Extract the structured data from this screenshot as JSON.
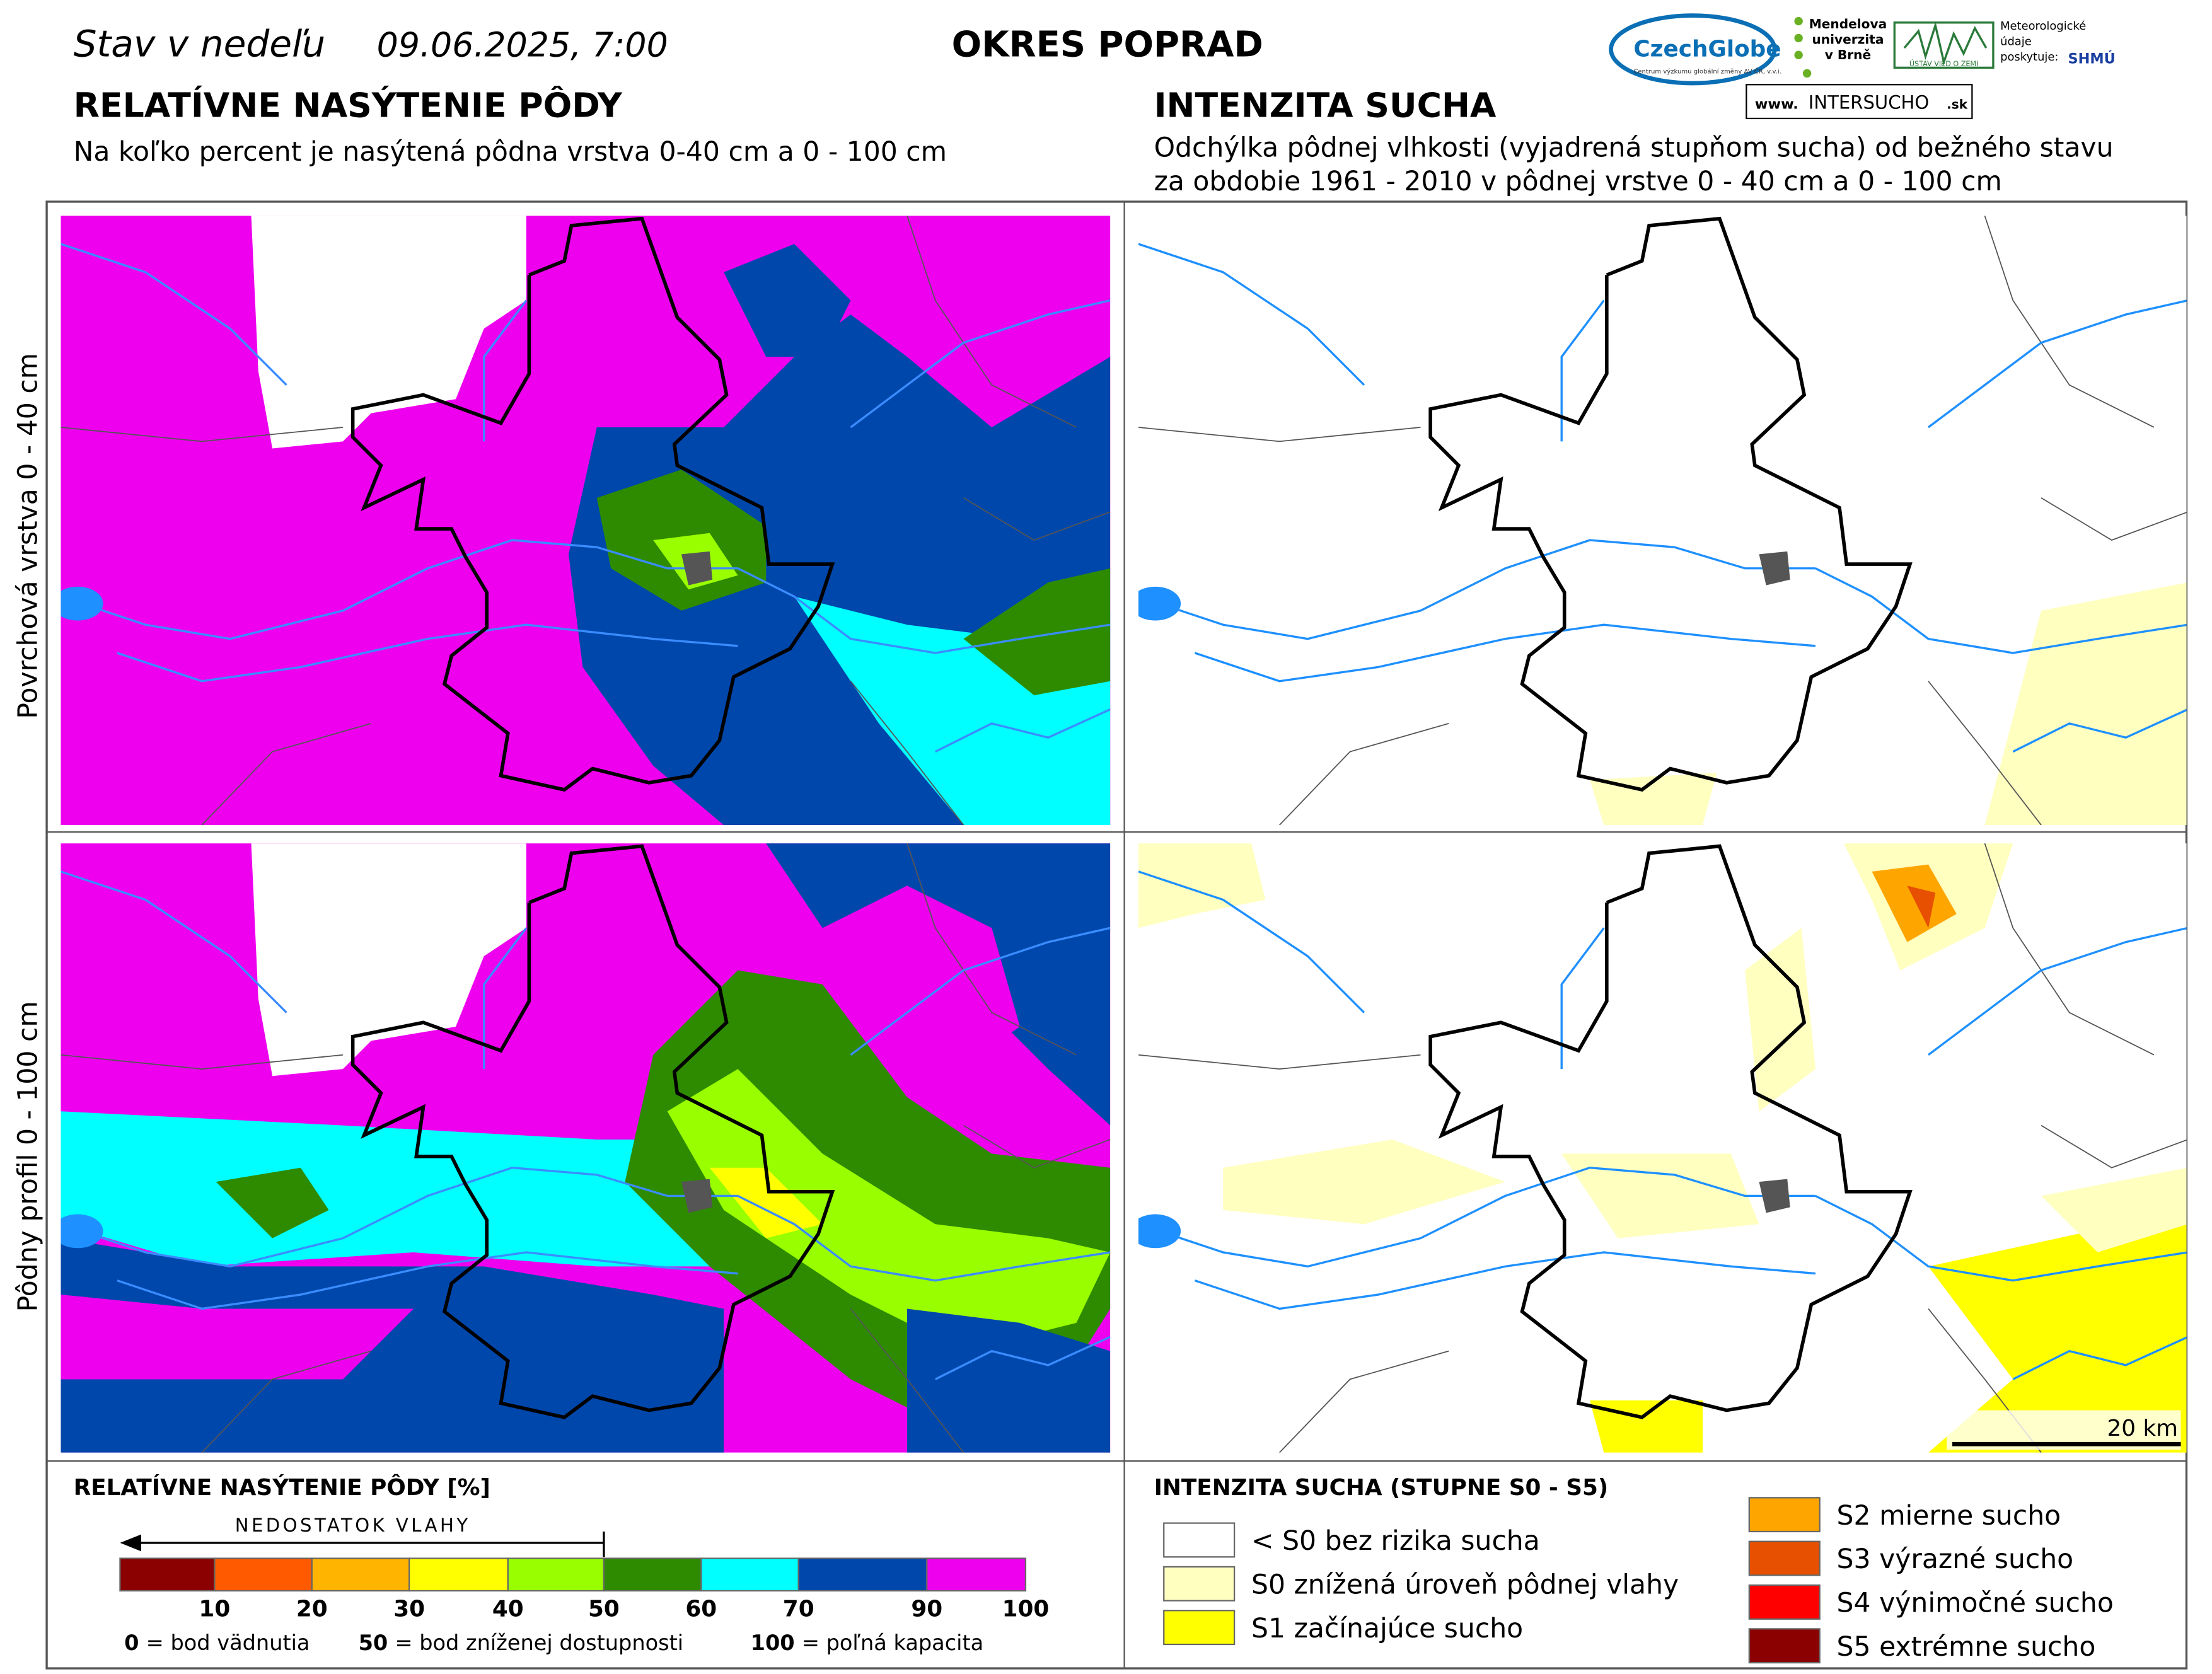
{
  "header": {
    "date_prefix": "Stav v nedeľu",
    "date": "09.06.2025, 7:00",
    "district": "OKRES POPRAD"
  },
  "logos": {
    "czechglobe": "CzechGlobe",
    "czechglobe_sub": "Centrum výzkumu globální změny AV ČR, v.v.i.",
    "mendel": [
      "Mendelova",
      "univerzita",
      "v Brně"
    ],
    "usz": "ÚSTAV VIED O ZEMI",
    "meteo": [
      "Meteorologické",
      "údaje",
      "poskytuje:"
    ],
    "shmu": "SHMÚ",
    "www": "www.",
    "intersucho": "INTERSUCHO",
    "sk": ".sk"
  },
  "left": {
    "title": "RELATÍVNE NASÝTENIE PÔDY",
    "subtitle": "Na koľko percent je nasýtená pôdna vrstva 0-40 cm a 0 - 100 cm"
  },
  "right": {
    "title": "INTENZITA SUCHA",
    "subtitle": [
      "Odchýlka pôdnej vlhkosti (vyjadrená stupňom sucha) od bežného stavu",
      "za obdobie 1961 - 2010 v pôdnej vrstve 0 - 40 cm a 0 - 100 cm"
    ]
  },
  "rows": [
    "Povrchová vrstva 0 - 40 cm",
    "Pôdny profil 0 - 100 cm"
  ],
  "scale_bar": "20 km",
  "legend_left": {
    "title": "RELATÍVNE NASÝTENIE PÔDY [%]",
    "arrow_label": "NEDOSTATOK VLAHY",
    "colors": [
      "#8b0000",
      "#ff5a00",
      "#ffb400",
      "#ffff00",
      "#99ff00",
      "#2e8b00",
      "#00ffff",
      "#0047ab",
      "#ee00ee"
    ],
    "ticks": [
      "10",
      "20",
      "30",
      "40",
      "50",
      "60",
      "70",
      "90",
      "100"
    ],
    "notes": [
      {
        "key": "0",
        "text": "= bod vädnutia"
      },
      {
        "key": "50",
        "text": "= bod zníženej dostupnosti"
      },
      {
        "key": "100",
        "text": "= poľná kapacita"
      }
    ]
  },
  "legend_right": {
    "title": "INTENZITA SUCHA (STUPNE S0 - S5)",
    "items": [
      {
        "label": "< S0 bez rizika sucha",
        "color": "#ffffff"
      },
      {
        "label": "S0 znížená úroveň pôdnej vlahy",
        "color": "#ffffc0"
      },
      {
        "label": "S1 začínajúce sucho",
        "color": "#ffff00"
      },
      {
        "label": "S2 mierne sucho",
        "color": "#ffa500"
      },
      {
        "label": "S3 výrazné sucho",
        "color": "#e65000"
      },
      {
        "label": "S4 výnimočné sucho",
        "color": "#ff0000"
      },
      {
        "label": "S5 extrémne sucho",
        "color": "#8b0000"
      }
    ]
  }
}
